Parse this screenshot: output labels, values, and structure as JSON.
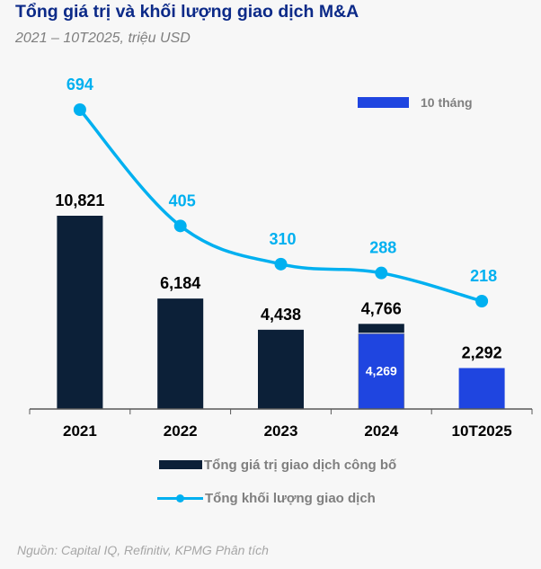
{
  "header": {
    "title": "Tổng giá trị và khối lượng giao dịch M&A",
    "subtitle": "2021 – 10T2025, triệu USD"
  },
  "source": "Nguồn: Capital IQ, Refinitiv, KPMG Phân tích",
  "legend": {
    "ten_months": "10 tháng",
    "bar_series": "Tổng giá trị giao dịch công bố",
    "line_series": "Tổng khối lượng giao dịch"
  },
  "colors": {
    "bar_full_year": "#0c2038",
    "bar_ten_months": "#1f45e0",
    "line": "#00b0f0",
    "title": "#0c2a88"
  },
  "chart_data": {
    "type": "bar+line",
    "title": "Tổng giá trị và khối lượng giao dịch M&A",
    "subtitle": "2021 – 10T2025, triệu USD",
    "categories": [
      "2021",
      "2022",
      "2023",
      "2024",
      "10T2025"
    ],
    "series": [
      {
        "name": "Tổng giá trị giao dịch công bố",
        "type": "bar",
        "values": [
          10821,
          6184,
          4438,
          4766,
          2292
        ],
        "value_labels": [
          "10,821",
          "6,184",
          "4,438",
          "4,766",
          "2,292"
        ]
      },
      {
        "name": "10 tháng",
        "type": "bar-segment",
        "values": [
          null,
          null,
          null,
          4269,
          2292
        ],
        "value_labels": [
          "",
          "",
          "",
          "4,269",
          ""
        ]
      },
      {
        "name": "Tổng khối lượng giao dịch",
        "type": "line",
        "axis": "secondary",
        "values": [
          694,
          405,
          310,
          288,
          218
        ],
        "value_labels": [
          "694",
          "405",
          "310",
          "288",
          "218"
        ]
      }
    ],
    "xlabel": "",
    "ylabel": "",
    "ylim": [
      0,
      12000
    ],
    "y2lim": [
      0,
      1000
    ],
    "grid": false,
    "legend": "bottom"
  }
}
